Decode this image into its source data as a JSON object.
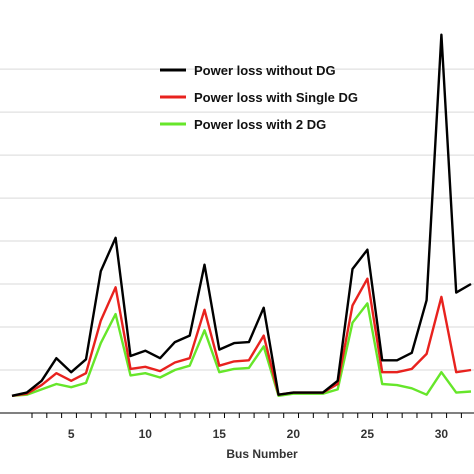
{
  "chart_data": {
    "type": "line",
    "title": "",
    "xlabel": "Bus Number",
    "ylabel": "",
    "xlim": [
      1,
      32
    ],
    "ylim": [
      0,
      0.0375
    ],
    "grid": "horizontal",
    "legend_placement": "top-center",
    "x": [
      1,
      2,
      3,
      4,
      5,
      6,
      7,
      8,
      9,
      10,
      11,
      12,
      13,
      14,
      15,
      16,
      17,
      18,
      19,
      20,
      21,
      22,
      23,
      24,
      25,
      26,
      27,
      28,
      29,
      30,
      31,
      32
    ],
    "x_ticks": [
      "5",
      "10",
      "15",
      "20",
      "25",
      "30"
    ],
    "x_tick_values": [
      5,
      10,
      15,
      20,
      25,
      30
    ],
    "y_gridlines": [
      0,
      0.004,
      0.008,
      0.012,
      0.016,
      0.02,
      0.024,
      0.028,
      0.032
    ],
    "series": [
      {
        "name": "Power loss without DG",
        "color": "#000000",
        "values": [
          0.0016,
          0.0019,
          0.003,
          0.0051,
          0.0038,
          0.005,
          0.0132,
          0.0163,
          0.0053,
          0.0058,
          0.0051,
          0.0066,
          0.0072,
          0.0138,
          0.0059,
          0.0065,
          0.0066,
          0.0098,
          0.0017,
          0.0019,
          0.0019,
          0.0019,
          0.003,
          0.0134,
          0.0152,
          0.0049,
          0.0049,
          0.0056,
          0.0105,
          0.0352,
          0.0112,
          0.012
        ]
      },
      {
        "name": "Power loss with Single DG",
        "color": "#e8221e",
        "values": [
          0.0016,
          0.0018,
          0.0026,
          0.0037,
          0.003,
          0.0037,
          0.0086,
          0.0117,
          0.0041,
          0.0043,
          0.0039,
          0.0047,
          0.0051,
          0.0096,
          0.0044,
          0.0048,
          0.0049,
          0.0072,
          0.0017,
          0.0019,
          0.0019,
          0.0019,
          0.0027,
          0.01,
          0.0125,
          0.0038,
          0.0038,
          0.0041,
          0.0055,
          0.0108,
          0.0038,
          0.004
        ]
      },
      {
        "name": "Power loss with 2 DG",
        "color": "#66e62a",
        "values": [
          0.0016,
          0.0017,
          0.0022,
          0.0027,
          0.0024,
          0.0028,
          0.0065,
          0.0092,
          0.0035,
          0.0037,
          0.0033,
          0.004,
          0.0044,
          0.0077,
          0.0038,
          0.0041,
          0.0042,
          0.0062,
          0.0016,
          0.0018,
          0.0018,
          0.0018,
          0.0022,
          0.0084,
          0.0102,
          0.0027,
          0.0026,
          0.0023,
          0.0017,
          0.0038,
          0.0019,
          0.002
        ]
      }
    ]
  }
}
